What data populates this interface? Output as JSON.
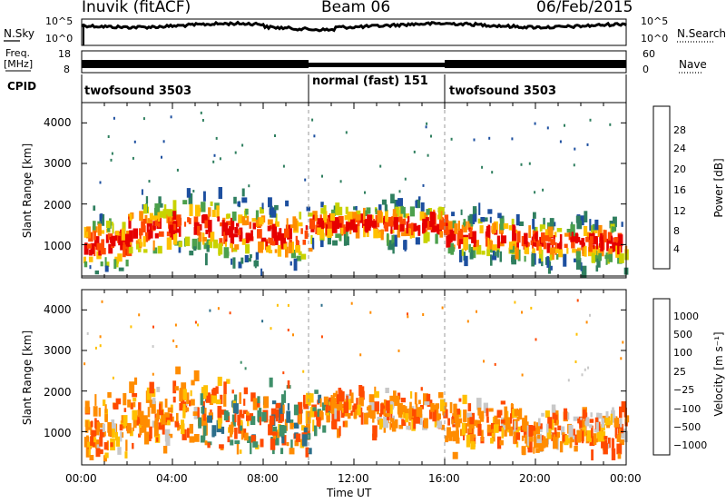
{
  "header": {
    "station": "Inuvik (fitACF)",
    "beam": "Beam 06",
    "date": "06/Feb/2015"
  },
  "panels": {
    "noise": {
      "left_label": "N.Sky",
      "right_label": "N.Search",
      "left_ticks": [
        "10^5",
        "10^0"
      ],
      "right_ticks": [
        "10^5",
        "10^0"
      ]
    },
    "freq": {
      "left_label_line1": "Freq.",
      "left_label_line2": "[MHz]",
      "right_label": "Nave",
      "left_ticks": [
        "18",
        "8"
      ],
      "right_ticks": [
        "60",
        "0"
      ]
    },
    "cpid": {
      "label": "CPID",
      "segments": [
        {
          "text": "twofsound 3503",
          "start_h": 0,
          "end_h": 10
        },
        {
          "text": "normal (fast) 151",
          "start_h": 10,
          "end_h": 16
        },
        {
          "text": "twofsound 3503",
          "start_h": 16,
          "end_h": 24
        }
      ]
    }
  },
  "chart_data": [
    {
      "type": "heatmap",
      "title": "",
      "xlabel": "",
      "ylabel": "Slant Range [km]",
      "x_range_hours": [
        0,
        24
      ],
      "ylim": [
        180,
        4500
      ],
      "yticks": [
        1000,
        2000,
        3000,
        4000
      ],
      "colorbar": {
        "label": "Power [dB]",
        "ticks": [
          "28",
          "24",
          "20",
          "16",
          "12",
          "8",
          "4"
        ],
        "colors": [
          "#e60000",
          "#ff4a00",
          "#ff8c00",
          "#ffc000",
          "#c8d200",
          "#4ca04c",
          "#2f7f5f",
          "#1d4f9f",
          "#0000ff"
        ]
      }
    },
    {
      "type": "heatmap",
      "title": "",
      "xlabel": "Time UT",
      "ylabel": "Slant Range [km]",
      "x_range_hours": [
        0,
        24
      ],
      "ylim": [
        180,
        4500
      ],
      "yticks": [
        1000,
        2000,
        3000,
        4000
      ],
      "xticks": [
        "00:00",
        "04:00",
        "08:00",
        "12:00",
        "16:00",
        "20:00",
        "00:00"
      ],
      "colorbar": {
        "label": "Velocity [m s⁻¹]",
        "ticks": [
          "1000",
          "500",
          "100",
          "25",
          "−25",
          "−100",
          "−500",
          "−1000"
        ],
        "colors": [
          "#1a3ca8",
          "#2c6e8a",
          "#3f8f6a",
          "#58b848",
          "#c8c8c8",
          "#ffc000",
          "#ff8c00",
          "#ff4a00",
          "#e60000"
        ]
      }
    }
  ]
}
